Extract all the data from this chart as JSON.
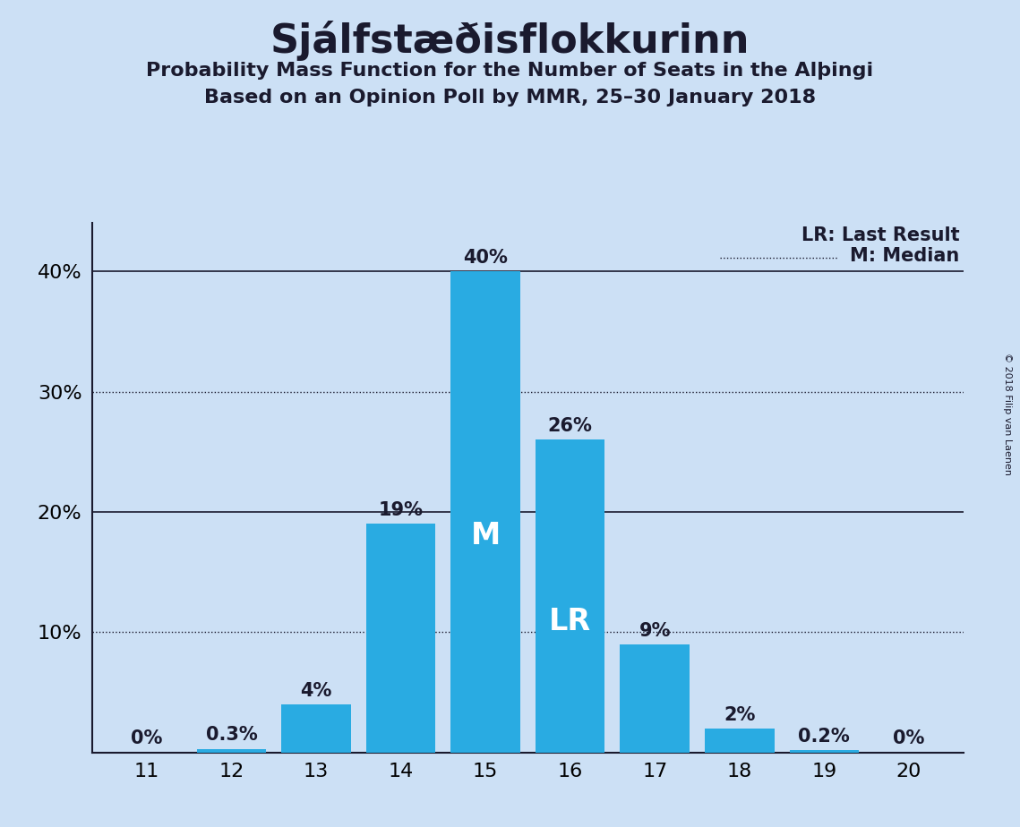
{
  "title": "Sjálfstæðisflokkurinn",
  "subtitle1": "Probability Mass Function for the Number of Seats in the Alþingi",
  "subtitle2": "Based on an Opinion Poll by MMR, 25–30 January 2018",
  "copyright": "© 2018 Filip van Laenen",
  "seats": [
    11,
    12,
    13,
    14,
    15,
    16,
    17,
    18,
    19,
    20
  ],
  "probabilities": [
    0.0,
    0.3,
    4.0,
    19.0,
    40.0,
    26.0,
    9.0,
    2.0,
    0.2,
    0.0
  ],
  "bar_color": "#29abe2",
  "background_color": "#cce0f5",
  "median_seat": 15,
  "lr_seat": 16,
  "yticks": [
    0,
    10,
    20,
    30,
    40
  ],
  "ylim": [
    0,
    44
  ],
  "dotted_lines": [
    10,
    30
  ],
  "solid_lines": [
    20,
    40
  ],
  "legend_lr": "LR: Last Result",
  "legend_m": "M: Median",
  "bar_width": 0.82,
  "title_fontsize": 32,
  "subtitle_fontsize": 16,
  "tick_fontsize": 16,
  "label_fontsize": 15,
  "inner_label_fontsize": 24
}
